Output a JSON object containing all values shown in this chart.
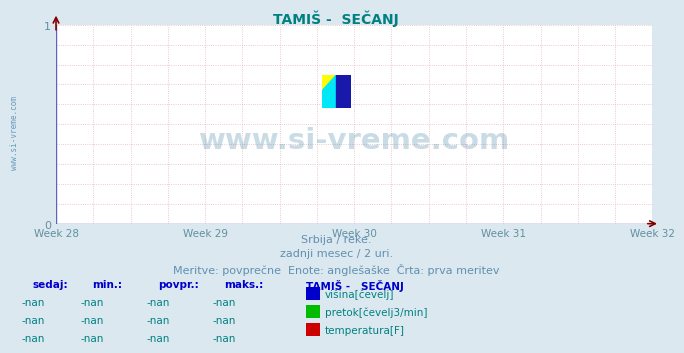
{
  "title": "TAMIŠ -  SEČANJ",
  "title_color": "#008080",
  "title_fontsize": 10,
  "bg_color": "#dce8f0",
  "plot_bg_color": "#ffffff",
  "x_tick_labels": [
    "Week 28",
    "Week 29",
    "Week 30",
    "Week 31",
    "Week 32"
  ],
  "ylim": [
    0,
    1
  ],
  "tick_color": "#6090a0",
  "watermark_text": "www.si-vreme.com",
  "watermark_color": "#4080a0",
  "watermark_alpha": 0.28,
  "watermark_fontsize": 21,
  "subtitle_lines": [
    "Srbija / reke.",
    "zadnji mesec / 2 uri.",
    "Meritve: povprečne  Enote: anglešaške  Črta: prva meritev"
  ],
  "subtitle_color": "#6090b0",
  "subtitle_fontsize": 8,
  "legend_title": "TAMIŠ -   SEČANJ",
  "legend_items": [
    {
      "label": "višina[čevelj]",
      "color": "#0000cc"
    },
    {
      "label": "pretok[čevelj3/min]",
      "color": "#00bb00"
    },
    {
      "label": "temperatura[F]",
      "color": "#cc0000"
    }
  ],
  "table_headers": [
    "sedaj:",
    "min.:",
    "povpr.:",
    "maks.:"
  ],
  "table_values": [
    "-nan",
    "-nan",
    "-nan",
    "-nan"
  ],
  "table_header_color": "#0000cc",
  "table_value_color": "#008080",
  "axis_color": "#6060c0",
  "arrow_color": "#800000",
  "left_label": "www.si-vreme.com",
  "left_label_color": "#4080a8",
  "grid_color": "#e8b8b8",
  "logo_yellow": "#ffff00",
  "logo_cyan": "#00e8f8",
  "logo_blue": "#1818aa"
}
